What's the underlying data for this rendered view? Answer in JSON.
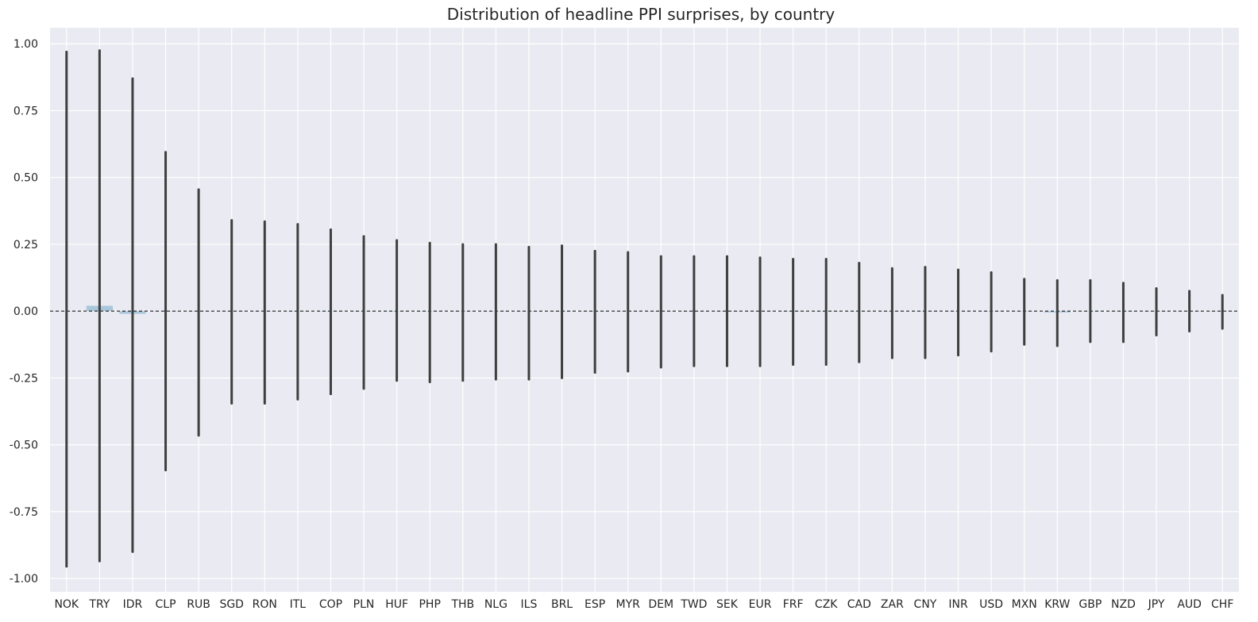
{
  "chart_data": {
    "type": "bar",
    "title": "Distribution of headline PPI surprises, by country",
    "xlabel": "",
    "ylabel": "",
    "ylim": [
      -1.05,
      1.06
    ],
    "yticks": [
      "1.00",
      "0.75",
      "0.50",
      "0.25",
      "0.00",
      "-0.25",
      "-0.50",
      "-0.75",
      "-1.00"
    ],
    "ytick_values": [
      1.0,
      0.75,
      0.5,
      0.25,
      0.0,
      -0.25,
      -0.5,
      -0.75,
      -1.0
    ],
    "grid": true,
    "reference_line": 0.0,
    "categories": [
      "NOK",
      "TRY",
      "IDR",
      "CLP",
      "RUB",
      "SGD",
      "RON",
      "ITL",
      "COP",
      "PLN",
      "HUF",
      "PHP",
      "THB",
      "NLG",
      "ILS",
      "BRL",
      "ESP",
      "MYR",
      "DEM",
      "TWD",
      "SEK",
      "EUR",
      "FRF",
      "CZK",
      "CAD",
      "ZAR",
      "CNY",
      "INR",
      "USD",
      "MXN",
      "KRW",
      "GBP",
      "NZD",
      "JPY",
      "AUD",
      "CHF"
    ],
    "values": [
      0.0,
      0.02,
      -0.01,
      0.0,
      0.0,
      0.0,
      0.0,
      0.0,
      0.0,
      0.0,
      0.0,
      0.0,
      0.0,
      0.0,
      0.0,
      0.0,
      0.0,
      0.0,
      0.0,
      0.0,
      0.0,
      0.0,
      0.0,
      0.0,
      0.0,
      0.0,
      0.0,
      0.0,
      0.0,
      0.0,
      -0.005,
      0.0,
      0.0,
      0.0,
      0.0,
      0.0
    ],
    "error_high": [
      0.97,
      0.975,
      0.87,
      0.595,
      0.455,
      0.34,
      0.335,
      0.325,
      0.305,
      0.28,
      0.265,
      0.255,
      0.25,
      0.25,
      0.24,
      0.245,
      0.225,
      0.22,
      0.205,
      0.205,
      0.205,
      0.2,
      0.195,
      0.195,
      0.18,
      0.16,
      0.165,
      0.155,
      0.145,
      0.12,
      0.115,
      0.115,
      0.105,
      0.085,
      0.075,
      0.06
    ],
    "error_low": [
      -0.955,
      -0.935,
      -0.9,
      -0.595,
      -0.465,
      -0.345,
      -0.345,
      -0.33,
      -0.31,
      -0.29,
      -0.26,
      -0.265,
      -0.26,
      -0.255,
      -0.255,
      -0.25,
      -0.23,
      -0.225,
      -0.21,
      -0.205,
      -0.205,
      -0.205,
      -0.2,
      -0.2,
      -0.19,
      -0.175,
      -0.175,
      -0.165,
      -0.15,
      -0.125,
      -0.13,
      -0.115,
      -0.115,
      -0.09,
      -0.075,
      -0.065
    ],
    "colors": {
      "background": "#eaeaf2",
      "grid": "#ffffff",
      "bar": "#a9c7db",
      "error": "#3f3f3f",
      "zero_line": "#000000",
      "text": "#262626"
    }
  }
}
